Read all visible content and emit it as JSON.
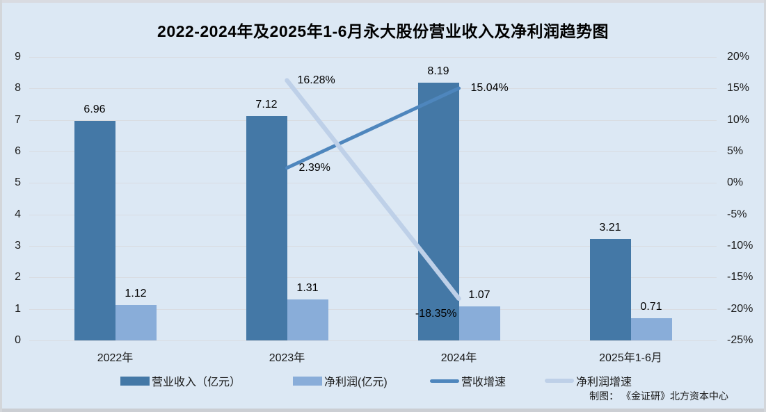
{
  "title": "2022-2024年及2025年1-6月永大股份营业收入及净利润趋势图",
  "credit": "制图： 《金证研》北方资本中心",
  "colors": {
    "background": "#dce8f4",
    "gridline": "#d9dce1",
    "revenue_bar": "#4478a6",
    "profit_bar": "#89add9",
    "revenue_growth_line": "#4e86bd",
    "profit_growth_line": "#bed0e8"
  },
  "chart_data": {
    "type": "bar",
    "subtype": "combo-bar-line-dual-axis",
    "categories": [
      "2022年",
      "2023年",
      "2024年",
      "2025年1-6月"
    ],
    "bar_series": [
      {
        "name": "营业收入（亿元）",
        "color": "#4478a6",
        "values": [
          6.96,
          7.12,
          8.19,
          3.21
        ],
        "labels": [
          "6.96",
          "7.12",
          "8.19",
          "3.21"
        ]
      },
      {
        "name": "净利润(亿元)",
        "color": "#89add9",
        "values": [
          1.12,
          1.31,
          1.07,
          0.71
        ],
        "labels": [
          "1.12",
          "1.31",
          "1.07",
          "0.71"
        ]
      }
    ],
    "line_series": [
      {
        "name": "营收增速",
        "color": "#4e86bd",
        "stroke_width": 5,
        "points": [
          {
            "category_index": 1,
            "value": 2.39,
            "label": "2.39%"
          },
          {
            "category_index": 2,
            "value": 15.04,
            "label": "15.04%"
          }
        ]
      },
      {
        "name": "净利润增速",
        "color": "#bed0e8",
        "stroke_width": 6.5,
        "points": [
          {
            "category_index": 1,
            "value": 16.28,
            "label": "16.28%"
          },
          {
            "category_index": 2,
            "value": -18.35,
            "label": "-18.35%"
          }
        ]
      }
    ],
    "left_axis": {
      "min": 0,
      "max": 9,
      "step": 1,
      "ticks": [
        "9",
        "8",
        "7",
        "6",
        "5",
        "4",
        "3",
        "2",
        "1",
        "0"
      ]
    },
    "right_axis": {
      "min": -25,
      "max": 20,
      "step": 5,
      "unit": "%",
      "ticks": [
        "20%",
        "15%",
        "10%",
        "5%",
        "0%",
        "-5%",
        "-10%",
        "-15%",
        "-20%",
        "-25%"
      ]
    },
    "grid": true,
    "legend_position": "bottom"
  }
}
